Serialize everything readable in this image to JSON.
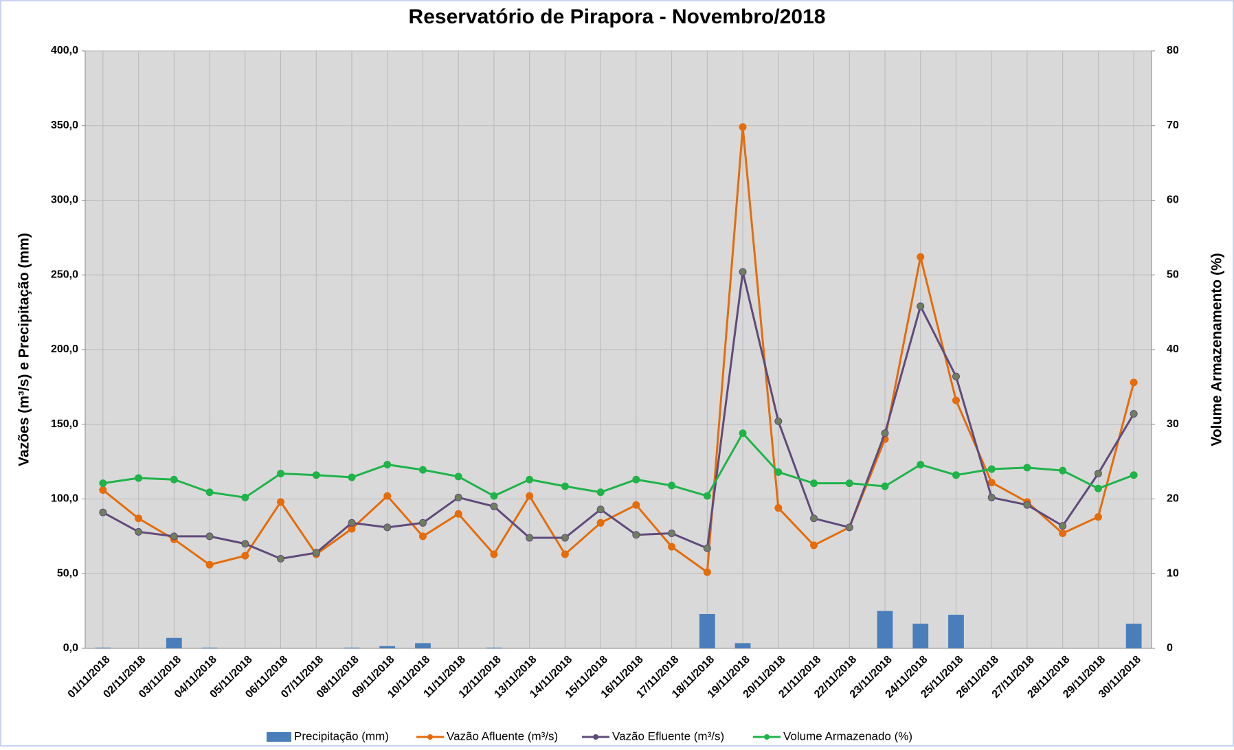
{
  "chart_data": {
    "type": "bar_line",
    "title": "Reservatório de Pirapora - Novembro/2018",
    "y_label": "Vazões (m³/s) e Precipitação (mm)",
    "y2_label": "Volume Armazenamento (%)",
    "categories": [
      "01/11/2018",
      "02/11/2018",
      "03/11/2018",
      "04/11/2018",
      "05/11/2018",
      "06/11/2018",
      "07/11/2018",
      "08/11/2018",
      "09/11/2018",
      "10/11/2018",
      "11/11/2018",
      "12/11/2018",
      "13/11/2018",
      "14/11/2018",
      "15/11/2018",
      "16/11/2018",
      "17/11/2018",
      "18/11/2018",
      "19/11/2018",
      "20/11/2018",
      "21/11/2018",
      "22/11/2018",
      "23/11/2018",
      "24/11/2018",
      "25/11/2018",
      "26/11/2018",
      "27/11/2018",
      "28/11/2018",
      "29/11/2018",
      "30/11/2018"
    ],
    "ylim": [
      0,
      400
    ],
    "yticks": [
      {
        "value": 0,
        "label": "0,0"
      },
      {
        "value": 50,
        "label": "50,0"
      },
      {
        "value": 100,
        "label": "100,0"
      },
      {
        "value": 150,
        "label": "150,0"
      },
      {
        "value": 200,
        "label": "200,0"
      },
      {
        "value": 250,
        "label": "250,0"
      },
      {
        "value": 300,
        "label": "300,0"
      },
      {
        "value": 350,
        "label": "350,0"
      },
      {
        "value": 400,
        "label": "400,0"
      }
    ],
    "y2lim": [
      0,
      80
    ],
    "y2ticks": [
      0,
      10,
      20,
      30,
      40,
      50,
      60,
      70,
      80
    ],
    "grid": true,
    "legend": "bottom",
    "series": [
      {
        "name": "Precipitação (mm)",
        "kind": "bar",
        "color": "#4a7ebb",
        "axis": "y",
        "values": [
          0.5,
          0,
          7,
          0.5,
          0,
          0,
          0,
          0.5,
          1.5,
          3.5,
          0,
          0.5,
          0,
          0,
          0,
          0,
          0,
          23,
          3.5,
          0,
          0,
          0,
          25,
          16.5,
          22.5,
          0,
          0,
          0,
          0,
          16.5
        ]
      },
      {
        "name": "Vazão Afluente (m³/s)",
        "kind": "line",
        "color": "#e46c0a",
        "axis": "y",
        "values": [
          106,
          87,
          73,
          56,
          62,
          98,
          63,
          80,
          102,
          75,
          90,
          63,
          102,
          63,
          84,
          96,
          68,
          51,
          349,
          94,
          69,
          81,
          140,
          262,
          166,
          111,
          98,
          77,
          88,
          178
        ]
      },
      {
        "name": "Vazão Efluente (m³/s)",
        "kind": "line",
        "color": "#604a7b",
        "axis": "y",
        "values": [
          91,
          78,
          75,
          75,
          70,
          60,
          64,
          84,
          81,
          84,
          101,
          95,
          74,
          74,
          93,
          76,
          77,
          67,
          252,
          152,
          87,
          81,
          144,
          229,
          182,
          101,
          96,
          82,
          117,
          157
        ]
      },
      {
        "name": "Volume Armazenado (%)",
        "kind": "line",
        "color": "#1fb34a",
        "axis": "y2",
        "values": [
          22.1,
          22.8,
          22.6,
          20.9,
          20.2,
          23.4,
          23.2,
          22.9,
          24.6,
          23.9,
          23.0,
          20.4,
          22.6,
          21.7,
          20.9,
          22.6,
          21.8,
          20.4,
          28.8,
          23.6,
          22.1,
          22.1,
          21.7,
          24.6,
          23.2,
          24.0,
          24.2,
          23.8,
          21.4,
          23.2
        ]
      }
    ]
  }
}
